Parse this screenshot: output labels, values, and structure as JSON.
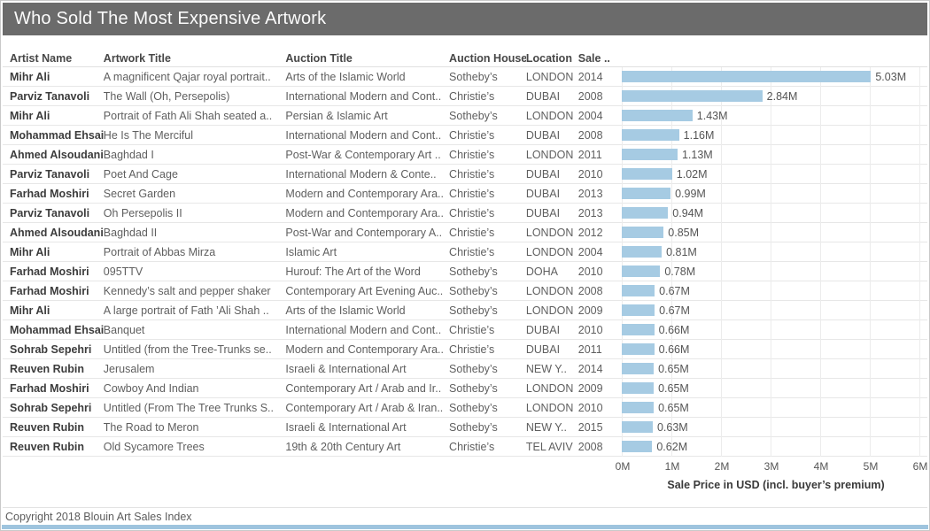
{
  "title": "Who Sold The Most Expensive Artwork",
  "columns": {
    "artist": "Artist Name",
    "artwork": "Artwork Title",
    "auction": "Auction Title",
    "house": "Auction House",
    "location": "Location",
    "sale": "Sale .."
  },
  "footer": {
    "copyright": "Copyright 2018 Blouin Art Sales Index"
  },
  "colors": {
    "bar": "#a6cbe3",
    "titlebar": "#6b6b6b",
    "bottom_strip": "#9ec4de"
  },
  "chart_data": {
    "type": "bar",
    "title": "Who Sold The Most Expensive Artwork",
    "xlabel": "Sale Price in USD (incl. buyer’s premium)",
    "x_ticks": [
      "0M",
      "1M",
      "2M",
      "3M",
      "4M",
      "5M",
      "6M"
    ],
    "xlim": [
      0,
      6
    ],
    "grid": "vertical",
    "unit": "millions USD",
    "rows": [
      {
        "artist": "Mihr Ali",
        "artwork": "A magnificent Qajar royal portrait..",
        "auction": "Arts of the Islamic World",
        "house": "Sotheby’s",
        "location": "LONDON",
        "year": "2014",
        "value": 5.03,
        "label": "5.03M"
      },
      {
        "artist": "Parviz Tanavoli",
        "artwork": "The Wall (Oh, Persepolis)",
        "auction": "International Modern and Cont..",
        "house": "Christie’s",
        "location": "DUBAI",
        "year": "2008",
        "value": 2.84,
        "label": "2.84M"
      },
      {
        "artist": "Mihr Ali",
        "artwork": "Portrait of Fath Ali Shah seated a..",
        "auction": "Persian & Islamic Art",
        "house": "Sotheby’s",
        "location": "LONDON",
        "year": "2004",
        "value": 1.43,
        "label": "1.43M"
      },
      {
        "artist": "Mohammad Ehsai",
        "artwork": "He Is The Merciful",
        "auction": "International Modern and Cont..",
        "house": "Christie’s",
        "location": "DUBAI",
        "year": "2008",
        "value": 1.16,
        "label": "1.16M"
      },
      {
        "artist": "Ahmed Alsoudani",
        "artwork": "Baghdad I",
        "auction": "Post-War & Contemporary Art ..",
        "house": "Christie’s",
        "location": "LONDON",
        "year": "2011",
        "value": 1.13,
        "label": "1.13M"
      },
      {
        "artist": "Parviz Tanavoli",
        "artwork": "Poet And Cage",
        "auction": "International Modern & Conte..",
        "house": "Christie’s",
        "location": "DUBAI",
        "year": "2010",
        "value": 1.02,
        "label": "1.02M"
      },
      {
        "artist": "Farhad Moshiri",
        "artwork": "Secret Garden",
        "auction": "Modern and Contemporary Ara..",
        "house": "Christie’s",
        "location": "DUBAI",
        "year": "2013",
        "value": 0.99,
        "label": "0.99M"
      },
      {
        "artist": "Parviz Tanavoli",
        "artwork": "Oh Persepolis II",
        "auction": "Modern and Contemporary Ara..",
        "house": "Christie’s",
        "location": "DUBAI",
        "year": "2013",
        "value": 0.94,
        "label": "0.94M"
      },
      {
        "artist": "Ahmed Alsoudani",
        "artwork": "Baghdad II",
        "auction": "Post-War and Contemporary A..",
        "house": "Christie’s",
        "location": "LONDON",
        "year": "2012",
        "value": 0.85,
        "label": "0.85M"
      },
      {
        "artist": "Mihr Ali",
        "artwork": "Portrait of Abbas Mirza",
        "auction": "Islamic Art",
        "house": "Christie’s",
        "location": "LONDON",
        "year": "2004",
        "value": 0.81,
        "label": "0.81M"
      },
      {
        "artist": "Farhad Moshiri",
        "artwork": "095TTV",
        "auction": "Hurouf: The Art of the Word",
        "house": "Sotheby’s",
        "location": "DOHA",
        "year": "2010",
        "value": 0.78,
        "label": "0.78M"
      },
      {
        "artist": "Farhad Moshiri",
        "artwork": "Kennedy’s salt and pepper shaker",
        "auction": "Contemporary Art Evening Auc..",
        "house": "Sotheby’s",
        "location": "LONDON",
        "year": "2008",
        "value": 0.67,
        "label": "0.67M"
      },
      {
        "artist": "Mihr Ali",
        "artwork": "A large portrait of Fath ’Ali Shah ..",
        "auction": "Arts of the Islamic World",
        "house": "Sotheby’s",
        "location": "LONDON",
        "year": "2009",
        "value": 0.67,
        "label": "0.67M"
      },
      {
        "artist": "Mohammad Ehsai",
        "artwork": "Banquet",
        "auction": "International Modern and Cont..",
        "house": "Christie’s",
        "location": "DUBAI",
        "year": "2010",
        "value": 0.66,
        "label": "0.66M"
      },
      {
        "artist": "Sohrab Sepehri",
        "artwork": "Untitled (from the Tree-Trunks se..",
        "auction": "Modern and Contemporary Ara..",
        "house": "Christie’s",
        "location": "DUBAI",
        "year": "2011",
        "value": 0.66,
        "label": "0.66M"
      },
      {
        "artist": "Reuven Rubin",
        "artwork": "Jerusalem",
        "auction": "Israeli & International Art",
        "house": "Sotheby’s",
        "location": "NEW Y..",
        "year": "2014",
        "value": 0.65,
        "label": "0.65M"
      },
      {
        "artist": "Farhad Moshiri",
        "artwork": "Cowboy And Indian",
        "auction": "Contemporary Art / Arab and Ir..",
        "house": "Sotheby’s",
        "location": "LONDON",
        "year": "2009",
        "value": 0.65,
        "label": "0.65M"
      },
      {
        "artist": "Sohrab Sepehri",
        "artwork": "Untitled (From The Tree Trunks S..",
        "auction": "Contemporary Art / Arab & Iran..",
        "house": "Sotheby’s",
        "location": "LONDON",
        "year": "2010",
        "value": 0.65,
        "label": "0.65M"
      },
      {
        "artist": "Reuven Rubin",
        "artwork": "The Road to Meron",
        "auction": "Israeli & International Art",
        "house": "Sotheby’s",
        "location": "NEW Y..",
        "year": "2015",
        "value": 0.63,
        "label": "0.63M"
      },
      {
        "artist": "Reuven Rubin",
        "artwork": "Old Sycamore Trees",
        "auction": "19th & 20th Century Art",
        "house": "Christie’s",
        "location": "TEL AVIV",
        "year": "2008",
        "value": 0.62,
        "label": "0.62M"
      }
    ]
  }
}
